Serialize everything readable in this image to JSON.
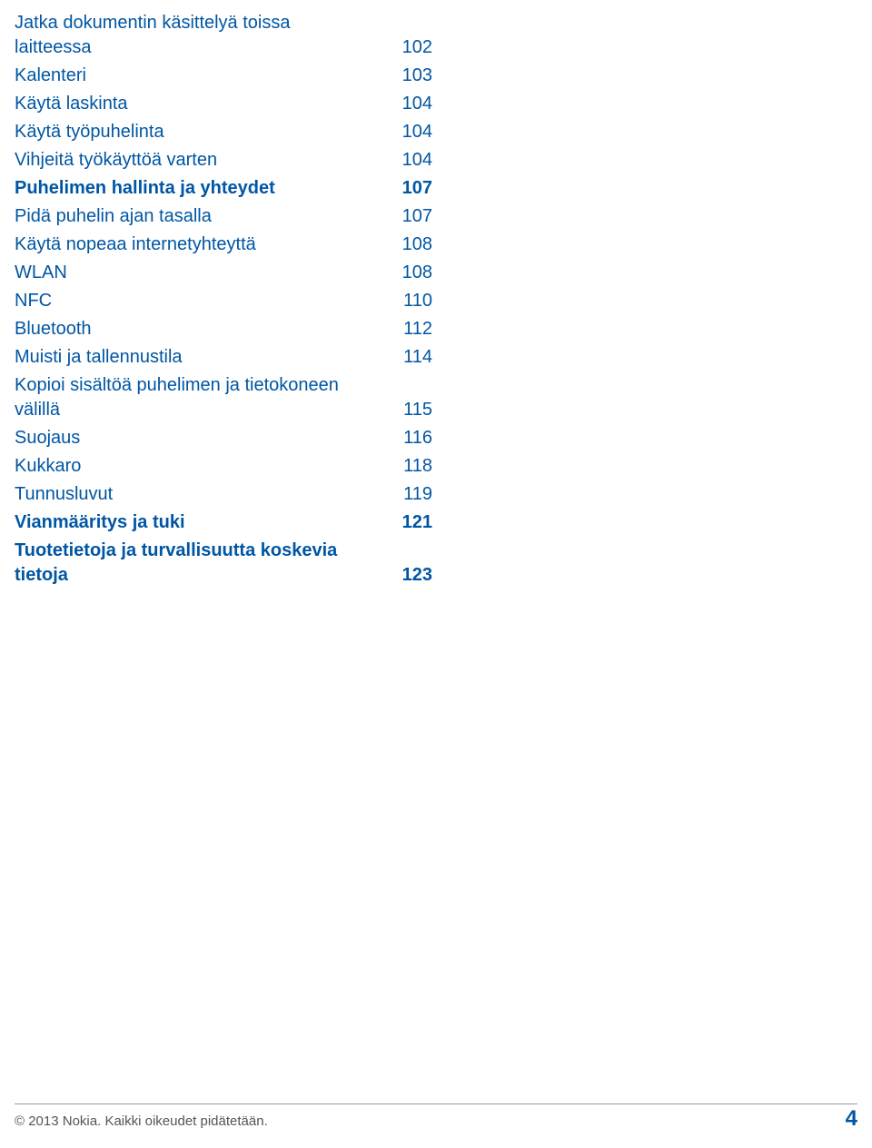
{
  "toc": {
    "entries": [
      {
        "label": "Jatka dokumentin käsittelyä toissa laitteessa",
        "page": "102",
        "bold": false
      },
      {
        "label": "Kalenteri",
        "page": "103",
        "bold": false
      },
      {
        "label": "Käytä laskinta",
        "page": "104",
        "bold": false
      },
      {
        "label": "Käytä työpuhelinta",
        "page": "104",
        "bold": false
      },
      {
        "label": "Vihjeitä työkäyttöä varten",
        "page": "104",
        "bold": false
      },
      {
        "label": "Puhelimen hallinta ja yhteydet",
        "page": "107",
        "bold": true
      },
      {
        "label": "Pidä puhelin ajan tasalla",
        "page": "107",
        "bold": false
      },
      {
        "label": "Käytä nopeaa internetyhteyttä",
        "page": "108",
        "bold": false
      },
      {
        "label": "WLAN",
        "page": "108",
        "bold": false
      },
      {
        "label": "NFC",
        "page": "110",
        "bold": false
      },
      {
        "label": "Bluetooth",
        "page": "112",
        "bold": false
      },
      {
        "label": "Muisti ja tallennustila",
        "page": "114",
        "bold": false
      },
      {
        "label": "Kopioi sisältöä puhelimen ja tietokoneen välillä",
        "page": "115",
        "bold": false
      },
      {
        "label": "Suojaus",
        "page": "116",
        "bold": false
      },
      {
        "label": "Kukkaro",
        "page": "118",
        "bold": false
      },
      {
        "label": "Tunnusluvut",
        "page": "119",
        "bold": false
      },
      {
        "label": "Vianmääritys ja tuki",
        "page": "121",
        "bold": true
      },
      {
        "label": "Tuotetietoja ja turvallisuutta koskevia tietoja",
        "page": "123",
        "bold": true
      }
    ]
  },
  "footer": {
    "copyright": "© 2013 Nokia. Kaikki oikeudet pidätetään.",
    "page_number": "4"
  },
  "colors": {
    "link": "#0056a4",
    "text_muted": "#555555",
    "divider": "#9a9a9a",
    "background": "#ffffff"
  }
}
